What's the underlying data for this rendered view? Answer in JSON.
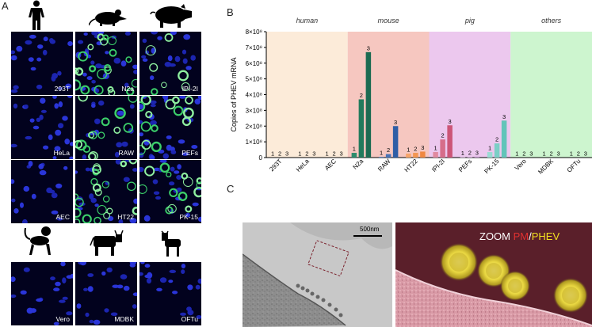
{
  "figure": {
    "panel_a_letter": "A",
    "panel_b_letter": "B",
    "panel_c_letter": "C"
  },
  "panel_a": {
    "rows": [
      {
        "cells": [
          {
            "label": "293T",
            "green": 0
          },
          {
            "label": "N2a",
            "green": 3
          },
          {
            "label": "IPI-2I",
            "green": 1
          }
        ]
      },
      {
        "cells": [
          {
            "label": "HeLa",
            "green": 0
          },
          {
            "label": "RAW",
            "green": 2
          },
          {
            "label": "PEFs",
            "green": 2
          }
        ]
      },
      {
        "cells": [
          {
            "label": "AEC",
            "green": 0
          },
          {
            "label": "HT22",
            "green": 3
          },
          {
            "label": "PK-15",
            "green": 2
          }
        ]
      },
      {
        "cells": [
          {
            "label": "Vero",
            "green": 0
          },
          {
            "label": "MDBK",
            "green": 0
          },
          {
            "label": "OFTu",
            "green": 0
          }
        ]
      }
    ],
    "icons": [
      "human-icon",
      "mouse-icon",
      "pig-icon",
      "monkey-icon",
      "cattle-icon",
      "goat-icon"
    ]
  },
  "panel_c": {
    "scale_bar_label": "500nm",
    "zoom_label": "ZOOM",
    "pm_label": "PM",
    "slash": "/",
    "phev_label": "PHEV",
    "colors": {
      "pm": "#e03030",
      "phev": "#f0e020",
      "zoom": "#ffffff"
    }
  },
  "chart_data": {
    "type": "bar",
    "ylabel": "Copies of PHEV mRNA",
    "ylim": [
      0,
      800000000
    ],
    "yticks": [
      {
        "value": 0,
        "label": "0"
      },
      {
        "value": 100000000,
        "label": "1×10⁸"
      },
      {
        "value": 200000000,
        "label": "2×10⁸"
      },
      {
        "value": 300000000,
        "label": "3×10⁸"
      },
      {
        "value": 400000000,
        "label": "4×10⁸"
      },
      {
        "value": 500000000,
        "label": "5×10⁸"
      },
      {
        "value": 600000000,
        "label": "6×10⁸"
      },
      {
        "value": 700000000,
        "label": "7×10⁸"
      },
      {
        "value": 800000000,
        "label": "8×10⁸"
      }
    ],
    "groups": [
      {
        "name": "human",
        "color": "#fcebd9",
        "categories": [
          0,
          1,
          2
        ]
      },
      {
        "name": "mouse",
        "color": "#f6c7c0",
        "categories": [
          3,
          4,
          5
        ]
      },
      {
        "name": "pig",
        "color": "#ecc8ee",
        "categories": [
          6,
          7,
          8
        ]
      },
      {
        "name": "others",
        "color": "#cdf5cf",
        "categories": [
          9,
          10,
          11
        ]
      }
    ],
    "categories": [
      "293T",
      "HeLa",
      "AEC",
      "N2a",
      "RAW",
      "HT22",
      "IPI-2I",
      "PEFs",
      "PK-15",
      "Vero",
      "MDBK",
      "OFTu"
    ],
    "timepoints": [
      "1",
      "2",
      "3"
    ],
    "values": [
      [
        0,
        0,
        0
      ],
      [
        0,
        0,
        0
      ],
      [
        0,
        0,
        0
      ],
      [
        30000000,
        370000000,
        670000000
      ],
      [
        5000000,
        22000000,
        200000000
      ],
      [
        25000000,
        30000000,
        38000000
      ],
      [
        35000000,
        115000000,
        205000000
      ],
      [
        2000000,
        4000000,
        6000000
      ],
      [
        35000000,
        90000000,
        235000000
      ],
      [
        0,
        0,
        0
      ],
      [
        0,
        0,
        0
      ],
      [
        0,
        0,
        0
      ]
    ],
    "bar_colors": [
      [
        "#aaaaaa",
        "#aaaaaa",
        "#aaaaaa"
      ],
      [
        "#aaaaaa",
        "#aaaaaa",
        "#aaaaaa"
      ],
      [
        "#aaaaaa",
        "#aaaaaa",
        "#aaaaaa"
      ],
      [
        "#2d8c6c",
        "#217a5c",
        "#1c6b52"
      ],
      [
        "#5f86c4",
        "#4a73b5",
        "#2f5ea6"
      ],
      [
        "#f6a56a",
        "#f39650",
        "#f08840"
      ],
      [
        "#e08aa0",
        "#d66d8a",
        "#cc5577"
      ],
      [
        "#d9b6df",
        "#cfa5d6",
        "#c495cd"
      ],
      [
        "#9adbd3",
        "#7ccfc6",
        "#62c4b9"
      ],
      [
        "#aaaaaa",
        "#aaaaaa",
        "#aaaaaa"
      ],
      [
        "#aaaaaa",
        "#aaaaaa",
        "#aaaaaa"
      ],
      [
        "#aaaaaa",
        "#aaaaaa",
        "#aaaaaa"
      ]
    ],
    "grid": false,
    "legend": "none"
  }
}
